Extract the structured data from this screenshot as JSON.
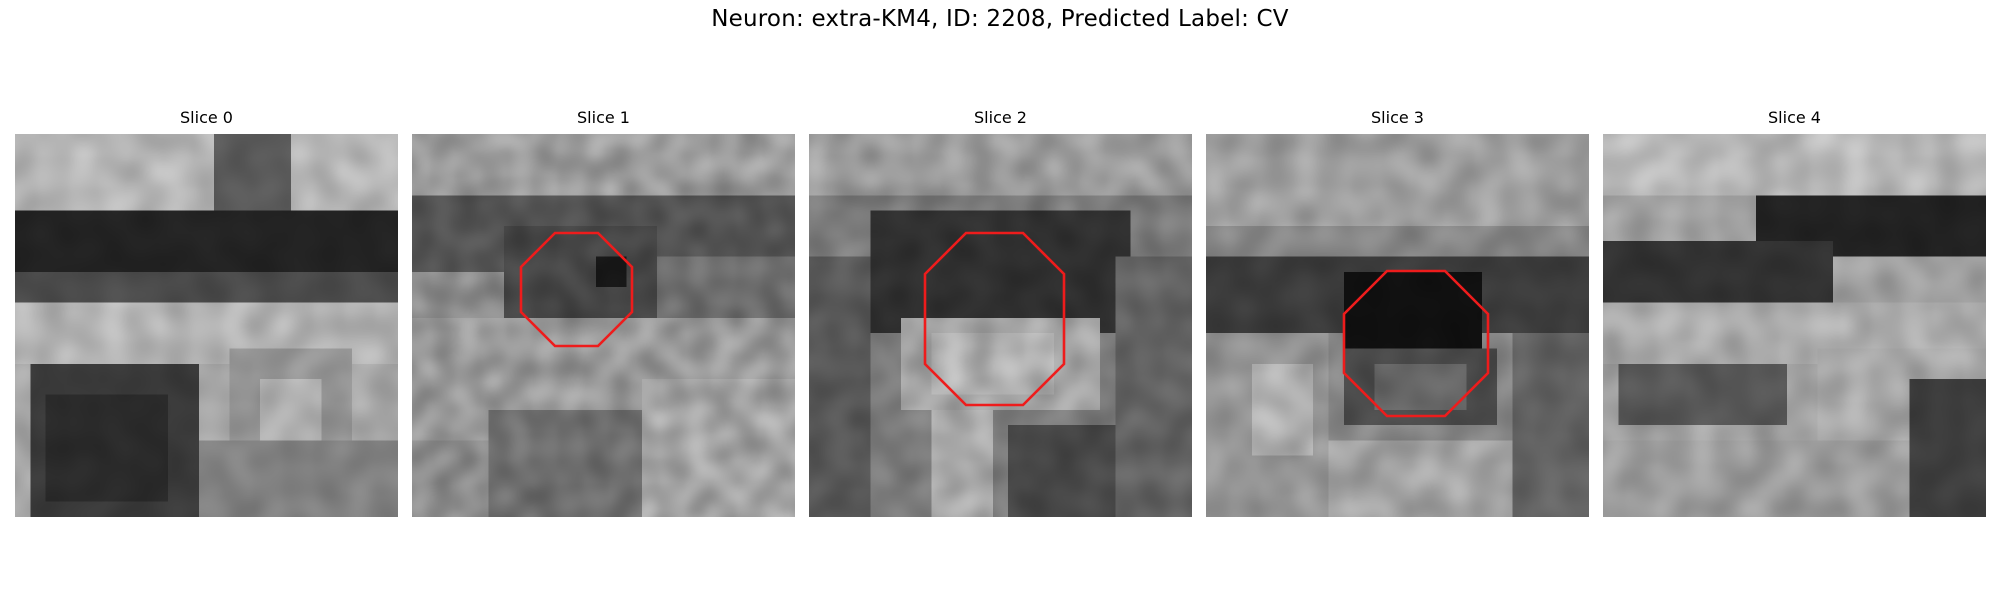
{
  "figure": {
    "title": "Neuron: extra-KM4, ID: 2208, Predicted Label: CV"
  },
  "panels": [
    {
      "title": "Slice 0"
    },
    {
      "title": "Slice 1"
    },
    {
      "title": "Slice 2"
    },
    {
      "title": "Slice 3"
    },
    {
      "title": "Slice 4"
    }
  ],
  "colors": {
    "outline": "#ee1c1c",
    "colormap": "gray"
  }
}
